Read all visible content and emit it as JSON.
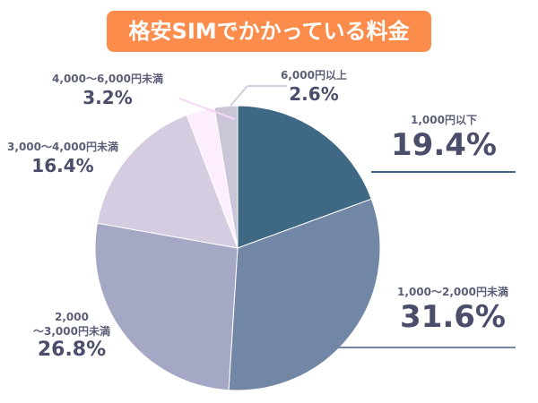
{
  "title": "格安SIMでかかっている料金",
  "colors": {
    "title_bg": "#fb8c4b",
    "text": "#4a4e6b"
  },
  "chart_data": {
    "type": "pie",
    "title": "格安SIMでかかっている料金",
    "start_angle_deg": 0,
    "direction": "clockwise",
    "categories": [
      "1,000円以下",
      "1,000〜2,000円未満",
      "2,000〜3,000円未満",
      "3,000〜4,000円未満",
      "4,000〜6,000円未満",
      "6,000円以上"
    ],
    "values": [
      19.4,
      31.6,
      26.8,
      16.4,
      3.2,
      2.6
    ],
    "unit": "%",
    "slice_colors": [
      "#3f6884",
      "#7286a6",
      "#a5a8c4",
      "#d6cce1",
      "#fdeefd",
      "#cbc5d8"
    ],
    "legend": "none (labels placed beside slices)"
  },
  "labels": [
    {
      "cat": "1,000円以下",
      "pct": "19.4%"
    },
    {
      "cat": "1,000〜2,000円未満",
      "pct": "31.6%"
    },
    {
      "cat_line1": "2,000",
      "cat_line2": "〜3,000円未満",
      "pct": "26.8%"
    },
    {
      "cat": "3,000〜4,000円未満",
      "pct": "16.4%"
    },
    {
      "cat": "4,000〜6,000円未満",
      "pct": "3.2%"
    },
    {
      "cat": "6,000円以上",
      "pct": "2.6%"
    }
  ]
}
